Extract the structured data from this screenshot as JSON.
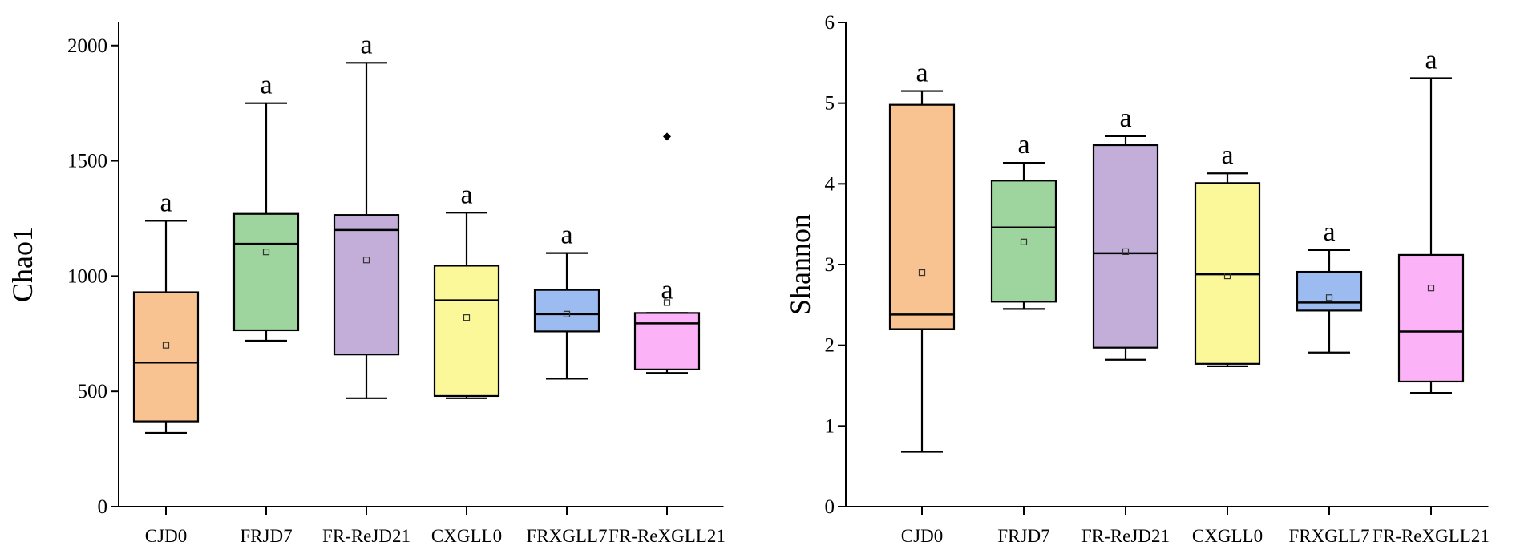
{
  "chart_data": [
    {
      "type": "box",
      "ylabel": "Chao1",
      "ylim": [
        0,
        2100
      ],
      "yticks": [
        0,
        500,
        1000,
        1500,
        2000
      ],
      "categories": [
        "CJD0",
        "FRJD7",
        "FR-ReJD21",
        "CXGLL0",
        "FRXGLL7",
        "FR-ReXGLL21"
      ],
      "colors": [
        "#f8c291",
        "#9ed59e",
        "#c2aed8",
        "#fbf89a",
        "#9cbcf1",
        "#fbb2f7"
      ],
      "boxes": [
        {
          "min": 320,
          "q1": 370,
          "median": 625,
          "q3": 930,
          "max": 1240,
          "mean": 700,
          "sig": "a",
          "outliers": []
        },
        {
          "min": 720,
          "q1": 765,
          "median": 1140,
          "q3": 1270,
          "max": 1750,
          "mean": 1105,
          "sig": "a",
          "outliers": []
        },
        {
          "min": 470,
          "q1": 660,
          "median": 1200,
          "q3": 1265,
          "max": 1925,
          "mean": 1070,
          "sig": "a",
          "outliers": []
        },
        {
          "min": 470,
          "q1": 480,
          "median": 895,
          "q3": 1045,
          "max": 1275,
          "mean": 820,
          "sig": "a",
          "outliers": []
        },
        {
          "min": 555,
          "q1": 760,
          "median": 835,
          "q3": 940,
          "max": 1100,
          "mean": 835,
          "sig": "a",
          "outliers": []
        },
        {
          "min": 580,
          "q1": 595,
          "median": 795,
          "q3": 840,
          "max": 840,
          "mean": 885,
          "sig": "a",
          "outliers": [
            1605
          ]
        }
      ]
    },
    {
      "type": "box",
      "ylabel": "Shannon",
      "ylim": [
        0,
        6
      ],
      "yticks": [
        0,
        1,
        2,
        3,
        4,
        5,
        6
      ],
      "categories": [
        "CJD0",
        "FRJD7",
        "FR-ReJD21",
        "CXGLL0",
        "FRXGLL7",
        "FR-ReXGLL21"
      ],
      "colors": [
        "#f8c291",
        "#9ed59e",
        "#c2aed8",
        "#fbf89a",
        "#9cbcf1",
        "#fbb2f7"
      ],
      "boxes": [
        {
          "min": 0.68,
          "q1": 2.2,
          "median": 2.38,
          "q3": 4.98,
          "max": 5.15,
          "mean": 2.9,
          "sig": "a",
          "outliers": []
        },
        {
          "min": 2.45,
          "q1": 2.54,
          "median": 3.46,
          "q3": 4.04,
          "max": 4.26,
          "mean": 3.28,
          "sig": "a",
          "outliers": []
        },
        {
          "min": 1.82,
          "q1": 1.97,
          "median": 3.14,
          "q3": 4.48,
          "max": 4.59,
          "mean": 3.16,
          "sig": "a",
          "outliers": []
        },
        {
          "min": 1.74,
          "q1": 1.77,
          "median": 2.88,
          "q3": 4.01,
          "max": 4.13,
          "mean": 2.86,
          "sig": "a",
          "outliers": []
        },
        {
          "min": 1.91,
          "q1": 2.43,
          "median": 2.53,
          "q3": 2.91,
          "max": 3.18,
          "mean": 2.59,
          "sig": "a",
          "outliers": []
        },
        {
          "min": 1.41,
          "q1": 1.55,
          "median": 2.17,
          "q3": 3.12,
          "max": 5.31,
          "mean": 2.71,
          "sig": "a",
          "outliers": []
        }
      ]
    }
  ]
}
